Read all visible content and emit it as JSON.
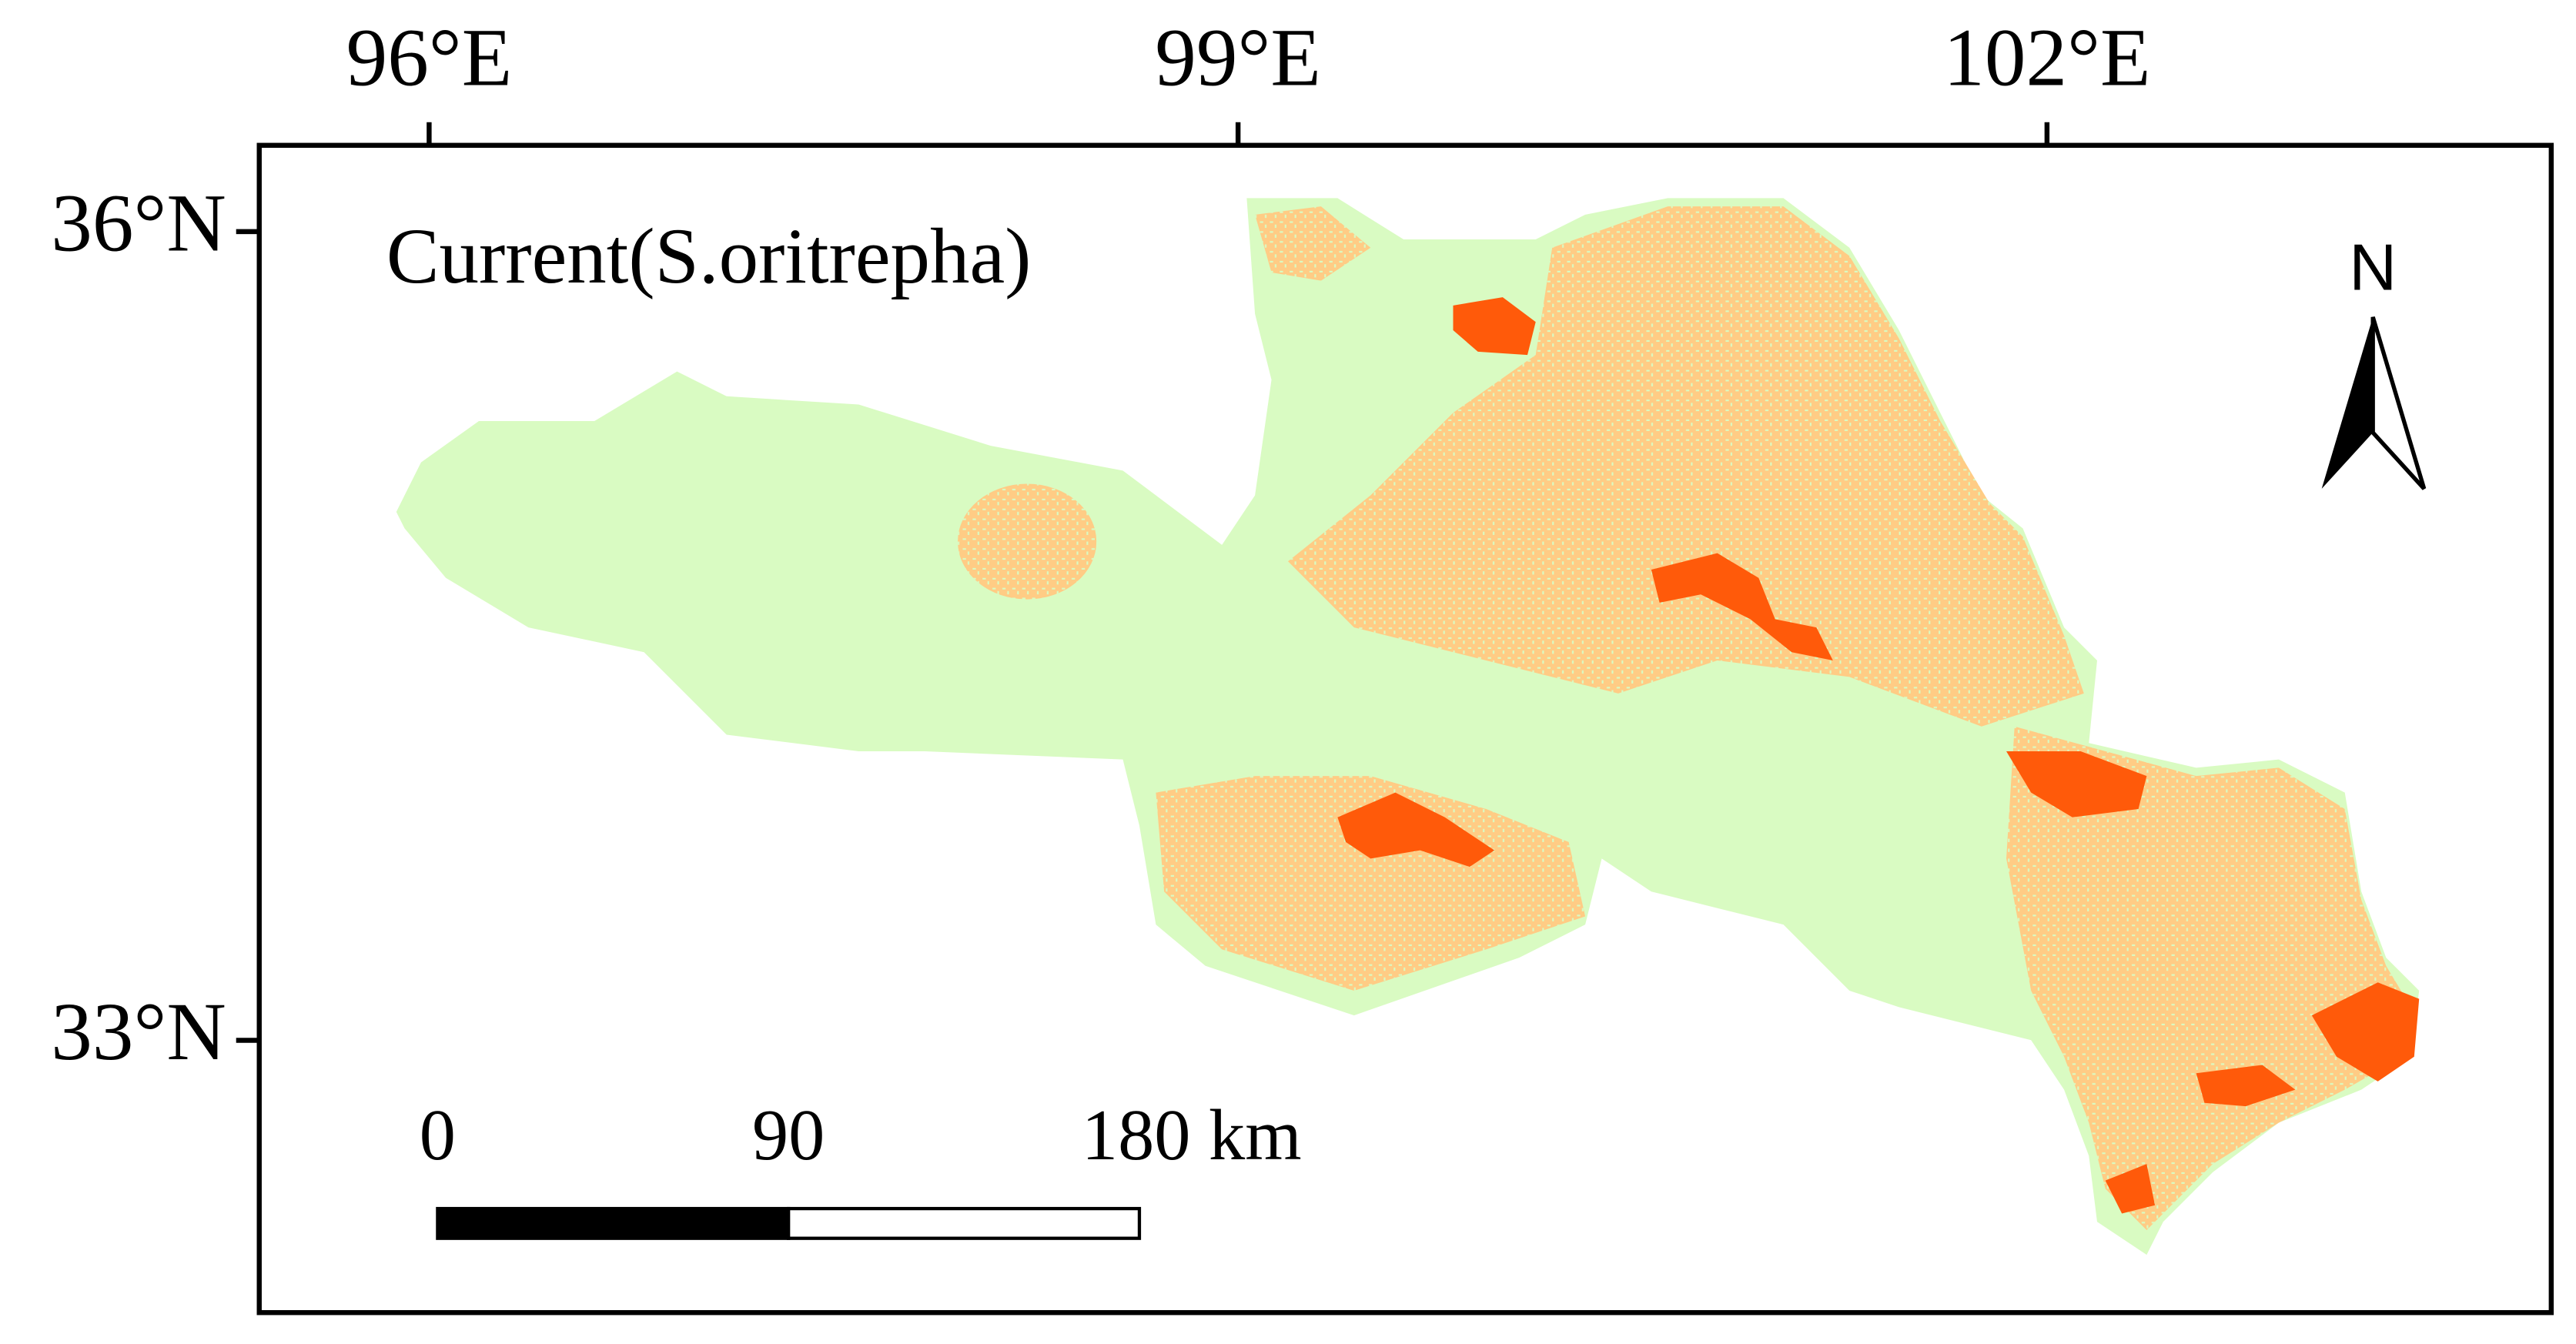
{
  "map": {
    "title": "Current(S.oritrepha)",
    "xlim": [
      95.37,
      103.87
    ],
    "ylim": [
      31.99,
      36.32
    ],
    "xticks": [
      {
        "value": 96,
        "label": "96°E"
      },
      {
        "value": 99,
        "label": "99°E"
      },
      {
        "value": 102,
        "label": "102°E"
      }
    ],
    "yticks": [
      {
        "value": 36,
        "label": "36°N"
      },
      {
        "value": 33,
        "label": "33°N"
      }
    ],
    "north": "N",
    "scale_bar": {
      "ticks": [
        0,
        90,
        {
          "value": 180,
          "label": "180 km"
        }
      ]
    }
  }
}
